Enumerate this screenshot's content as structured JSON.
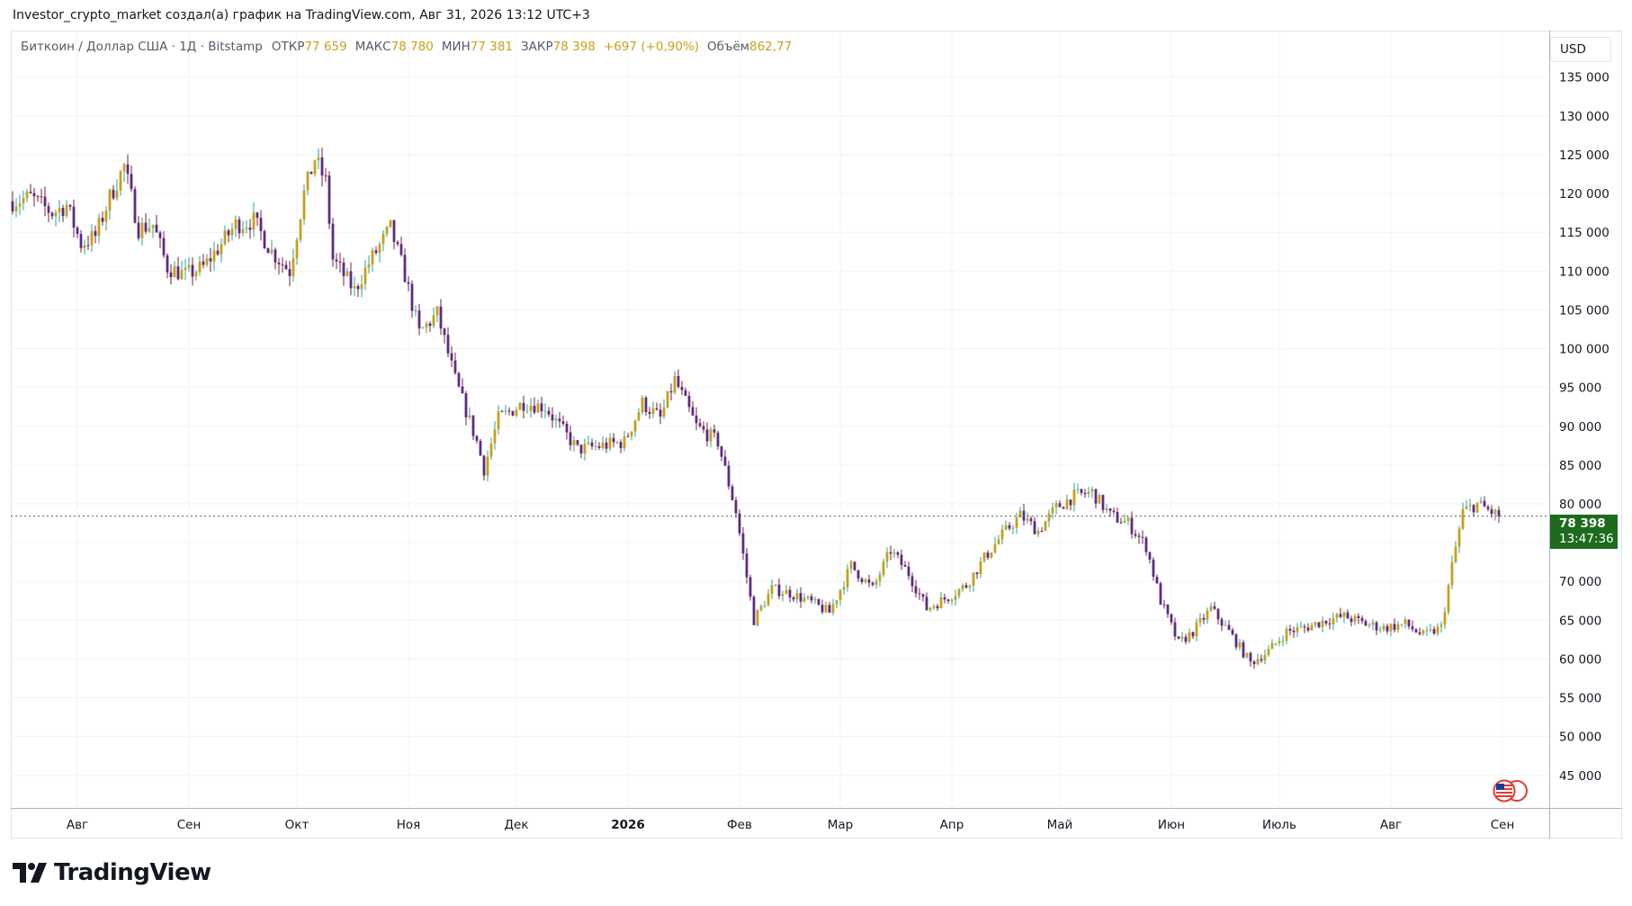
{
  "header": {
    "text": "Investor_crypto_market создал(а) график на TradingView.com, Авг 31, 2026 13:12 UTC+3"
  },
  "legend": {
    "symbol": "Биткоин / Доллар США · 1Д · Bitstamp",
    "open_label": "ОТКР",
    "open": "77 659",
    "high_label": "МАКС",
    "high": "78 780",
    "low_label": "МИН",
    "low": "77 381",
    "close_label": "ЗАКР",
    "close": "78 398",
    "change": "+697 (+0,90%)",
    "volume_label": "Объём",
    "volume": "862,77"
  },
  "currency": "USD",
  "last_price": {
    "price": "78 398",
    "countdown": "13:47:36"
  },
  "colors": {
    "up": "#26a69a",
    "down": "#5b2c83",
    "wick": "#c7a01a",
    "body_up": "#c7a01a",
    "price_label": "#1e6b1e",
    "grid": "#f0f3fa"
  },
  "logo": {
    "text": "TradingView",
    "icon": "tradingview-logo-icon"
  },
  "chart_data": {
    "type": "candlestick",
    "title": "Биткоин / Доллар США · 1Д · Bitstamp",
    "y_ticks": [
      135000,
      130000,
      125000,
      120000,
      115000,
      110000,
      105000,
      100000,
      95000,
      90000,
      85000,
      80000,
      75000,
      70000,
      65000,
      60000,
      55000,
      50000,
      45000
    ],
    "y_tick_labels": [
      "135 000",
      "130 000",
      "125 000",
      "120 000",
      "115 000",
      "110 000",
      "105 000",
      "100 000",
      "95 000",
      "90 000",
      "85 000",
      "80 000",
      "75 000",
      "70 000",
      "65 000",
      "60 000",
      "55 000",
      "50 000",
      "45 000"
    ],
    "ylim": [
      40800,
      141000
    ],
    "x_ticks": [
      "Авг",
      "Сен",
      "Окт",
      "Ноя",
      "Дек",
      "2026",
      "Фев",
      "Мар",
      "Апр",
      "Май",
      "Июн",
      "Июль",
      "Авг",
      "Сен"
    ],
    "x_tick_bold": [
      false,
      false,
      false,
      false,
      false,
      true,
      false,
      false,
      false,
      false,
      false,
      false,
      false,
      false
    ],
    "last_price": 78398,
    "price_path": [
      [
        "2025-07-14",
        119000
      ],
      [
        "2025-07-19",
        119500
      ],
      [
        "2025-07-25",
        117500
      ],
      [
        "2025-07-29",
        118500
      ],
      [
        "2025-08-02",
        113500
      ],
      [
        "2025-08-06",
        114500
      ],
      [
        "2025-08-10",
        119500
      ],
      [
        "2025-08-14",
        123500
      ],
      [
        "2025-08-18",
        115500
      ],
      [
        "2025-08-22",
        116000
      ],
      [
        "2025-08-26",
        110500
      ],
      [
        "2025-08-31",
        109500
      ],
      [
        "2025-09-05",
        110500
      ],
      [
        "2025-09-10",
        113500
      ],
      [
        "2025-09-14",
        116000
      ],
      [
        "2025-09-19",
        116500
      ],
      [
        "2025-09-24",
        112500
      ],
      [
        "2025-09-29",
        110000
      ],
      [
        "2025-10-03",
        120000
      ],
      [
        "2025-10-06",
        124500
      ],
      [
        "2025-10-09",
        121500
      ],
      [
        "2025-10-11",
        111500
      ],
      [
        "2025-10-17",
        107500
      ],
      [
        "2025-10-21",
        111000
      ],
      [
        "2025-10-27",
        115500
      ],
      [
        "2025-10-31",
        109500
      ],
      [
        "2025-11-04",
        102000
      ],
      [
        "2025-11-09",
        104500
      ],
      [
        "2025-11-14",
        96000
      ],
      [
        "2025-11-20",
        88000
      ],
      [
        "2025-11-22",
        84500
      ],
      [
        "2025-11-26",
        91000
      ],
      [
        "2025-12-03",
        93000
      ],
      [
        "2025-12-09",
        92500
      ],
      [
        "2025-12-13",
        90000
      ],
      [
        "2025-12-18",
        87000
      ],
      [
        "2025-12-25",
        87500
      ],
      [
        "2025-12-31",
        88000
      ],
      [
        "2026-01-05",
        93000
      ],
      [
        "2026-01-10",
        91000
      ],
      [
        "2026-01-14",
        96000
      ],
      [
        "2026-01-20",
        90000
      ],
      [
        "2026-01-26",
        88000
      ],
      [
        "2026-01-31",
        79000
      ],
      [
        "2026-02-05",
        65000
      ],
      [
        "2026-02-10",
        69000
      ],
      [
        "2026-02-15",
        68500
      ],
      [
        "2026-02-20",
        67500
      ],
      [
        "2026-02-26",
        66000
      ],
      [
        "2026-03-04",
        72000
      ],
      [
        "2026-03-10",
        69000
      ],
      [
        "2026-03-15",
        74000
      ],
      [
        "2026-03-20",
        71000
      ],
      [
        "2026-03-25",
        66500
      ],
      [
        "2026-03-31",
        68000
      ],
      [
        "2026-04-05",
        69500
      ],
      [
        "2026-04-10",
        73000
      ],
      [
        "2026-04-15",
        76000
      ],
      [
        "2026-04-20",
        78500
      ],
      [
        "2026-04-25",
        76500
      ],
      [
        "2026-04-30",
        79500
      ],
      [
        "2026-05-05",
        81000
      ],
      [
        "2026-05-10",
        81500
      ],
      [
        "2026-05-15",
        78500
      ],
      [
        "2026-05-20",
        77500
      ],
      [
        "2026-05-25",
        74500
      ],
      [
        "2026-05-29",
        67500
      ],
      [
        "2026-06-03",
        62000
      ],
      [
        "2026-06-07",
        63500
      ],
      [
        "2026-06-12",
        66500
      ],
      [
        "2026-06-17",
        63500
      ],
      [
        "2026-06-23",
        59500
      ],
      [
        "2026-06-28",
        61000
      ],
      [
        "2026-07-03",
        63500
      ],
      [
        "2026-07-08",
        64000
      ],
      [
        "2026-07-14",
        65000
      ],
      [
        "2026-07-19",
        65500
      ],
      [
        "2026-07-25",
        64500
      ],
      [
        "2026-07-30",
        64000
      ],
      [
        "2026-08-05",
        64500
      ],
      [
        "2026-08-10",
        63000
      ],
      [
        "2026-08-15",
        64000
      ],
      [
        "2026-08-18",
        72000
      ],
      [
        "2026-08-21",
        79000
      ],
      [
        "2026-08-25",
        80000
      ],
      [
        "2026-08-31",
        78398
      ]
    ]
  }
}
